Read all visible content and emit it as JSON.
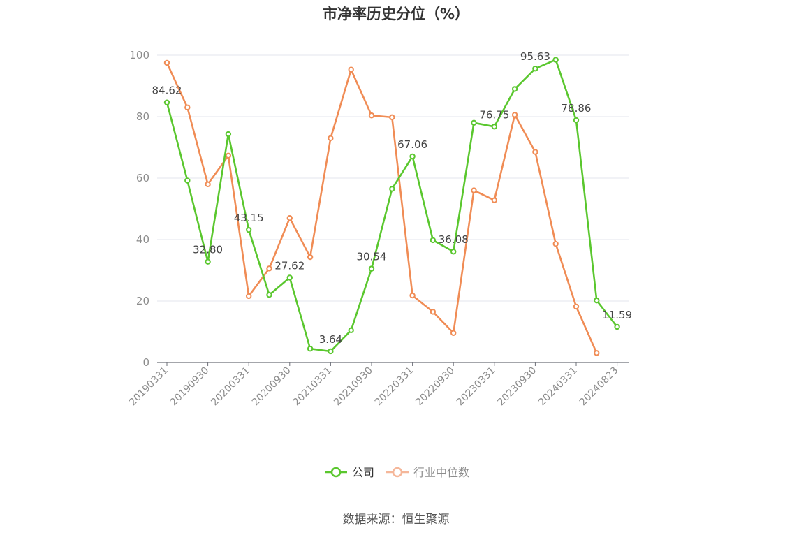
{
  "chart_data": {
    "type": "line",
    "title": "市净率历史分位（%）",
    "ylim": [
      0,
      100
    ],
    "y_ticks": [
      0,
      20,
      40,
      60,
      80,
      100
    ],
    "x_tick_labels": [
      "20190331",
      "20190930",
      "20200331",
      "20200930",
      "20210331",
      "20210930",
      "20220331",
      "20220930",
      "20230331",
      "20230930",
      "20240331",
      "20240823"
    ],
    "grid": true,
    "legend_position": "bottom",
    "series": [
      {
        "name": "公司",
        "color": "#5ac72e",
        "values": [
          84.62,
          59.2,
          32.8,
          74.3,
          43.15,
          22.0,
          27.62,
          4.5,
          3.64,
          10.5,
          30.54,
          56.5,
          67.06,
          39.8,
          36.08,
          78.0,
          76.75,
          89.0,
          95.63,
          98.5,
          78.86,
          20.2,
          11.59
        ],
        "labels": {
          "0": "84.62",
          "2": "32.80",
          "4": "43.15",
          "6": "27.62",
          "8": "3.64",
          "10": "30.54",
          "12": "67.06",
          "14": "36.08",
          "16": "76.75",
          "18": "95.63",
          "20": "78.86",
          "22": "11.59"
        }
      },
      {
        "name": "行业中位数",
        "color": "#f08c55",
        "values": [
          97.5,
          83.0,
          58.0,
          67.3,
          21.6,
          30.6,
          47.0,
          34.3,
          73.0,
          95.3,
          80.4,
          79.8,
          21.8,
          16.5,
          9.6,
          56.0,
          52.8,
          80.6,
          68.5,
          38.6,
          18.2,
          3.1,
          null
        ]
      }
    ]
  },
  "source": "数据来源：恒生聚源"
}
